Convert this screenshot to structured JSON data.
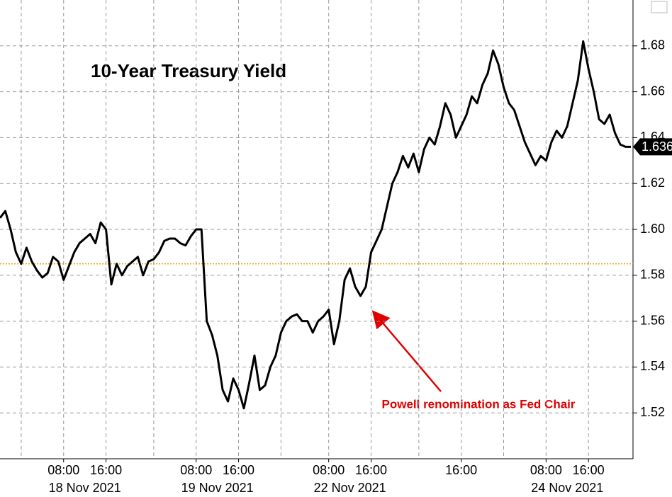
{
  "chart_data": {
    "type": "line",
    "title": "10-Year Treasury Yield",
    "annotation": "Powell renomination as Fed Chair",
    "x": [
      0,
      1,
      2,
      3,
      4,
      5,
      6,
      7,
      8,
      9,
      10,
      11,
      12,
      13,
      14,
      15,
      16,
      17,
      18,
      19,
      20,
      21,
      22,
      23,
      24,
      25,
      26,
      27,
      28,
      29,
      30,
      31,
      32,
      33,
      34,
      35,
      36,
      37,
      38,
      39,
      40,
      41,
      42,
      43,
      44,
      45,
      46,
      47,
      48,
      49,
      50,
      51,
      52,
      53,
      54,
      55,
      56,
      57,
      58,
      59,
      60,
      61,
      62,
      63,
      64,
      65,
      66,
      67,
      68,
      69,
      70,
      71,
      72,
      73,
      74,
      75,
      76,
      77,
      78,
      79,
      80,
      81,
      82,
      83,
      84,
      85,
      86,
      87,
      88,
      89,
      90,
      91,
      92,
      93,
      94,
      95,
      96,
      97,
      98,
      99,
      100,
      101,
      102,
      103,
      104,
      105,
      106,
      107,
      108,
      109,
      110,
      111,
      112,
      113,
      114,
      115,
      116,
      117,
      118,
      119
    ],
    "series": [
      {
        "color": "#000000",
        "values": [
          1.605,
          1.608,
          1.6,
          1.59,
          1.585,
          1.592,
          1.586,
          1.582,
          1.579,
          1.581,
          1.588,
          1.586,
          1.578,
          1.584,
          1.59,
          1.594,
          1.596,
          1.598,
          1.594,
          1.603,
          1.6,
          1.576,
          1.585,
          1.58,
          1.584,
          1.586,
          1.588,
          1.58,
          1.586,
          1.587,
          1.59,
          1.595,
          1.596,
          1.596,
          1.594,
          1.593,
          1.597,
          1.6,
          1.6,
          1.56,
          1.554,
          1.545,
          1.53,
          1.525,
          1.535,
          1.53,
          1.522,
          1.533,
          1.545,
          1.53,
          1.532,
          1.54,
          1.545,
          1.555,
          1.56,
          1.562,
          1.563,
          1.56,
          1.56,
          1.555,
          1.56,
          1.562,
          1.565,
          1.55,
          1.56,
          1.578,
          1.583,
          1.575,
          1.571,
          1.575,
          1.59,
          1.595,
          1.6,
          1.61,
          1.62,
          1.625,
          1.632,
          1.627,
          1.633,
          1.625,
          1.635,
          1.64,
          1.637,
          1.645,
          1.655,
          1.65,
          1.64,
          1.645,
          1.65,
          1.658,
          1.655,
          1.663,
          1.668,
          1.678,
          1.672,
          1.662,
          1.655,
          1.652,
          1.645,
          1.638,
          1.633,
          1.628,
          1.632,
          1.63,
          1.638,
          1.643,
          1.64,
          1.645,
          1.655,
          1.665,
          1.682,
          1.67,
          1.66,
          1.648,
          1.646,
          1.65,
          1.642,
          1.637,
          1.636,
          1.636
        ]
      }
    ],
    "last_label": {
      "value": 1.636,
      "label": "1.636"
    },
    "hline": {
      "value": 1.585,
      "color": "#e0a000"
    },
    "xlim": [
      0,
      119
    ],
    "ylim": [
      1.5,
      1.7
    ],
    "yticks": [
      {
        "value": 1.52,
        "label": "1.52"
      },
      {
        "value": 1.54,
        "label": "1.54"
      },
      {
        "value": 1.56,
        "label": "1.56"
      },
      {
        "value": 1.58,
        "label": "1.58"
      },
      {
        "value": 1.6,
        "label": "1.60"
      },
      {
        "value": 1.62,
        "label": "1.62"
      },
      {
        "value": 1.64,
        "label": "1.64"
      },
      {
        "value": 1.66,
        "label": "1.66"
      },
      {
        "value": 1.68,
        "label": "1.68"
      }
    ],
    "xgrid": [
      4,
      12,
      20,
      29,
      37,
      45,
      53,
      62,
      70,
      79,
      87,
      95,
      103,
      111
    ],
    "xticks": [
      {
        "value": 12,
        "label": "08:00"
      },
      {
        "value": 20,
        "label": "16:00"
      },
      {
        "value": 37,
        "label": "08:00"
      },
      {
        "value": 45,
        "label": "16:00"
      },
      {
        "value": 62,
        "label": "08:00"
      },
      {
        "value": 70,
        "label": "16:00"
      },
      {
        "value": 87,
        "label": "16:00"
      },
      {
        "value": 103,
        "label": "08:00"
      },
      {
        "value": 111,
        "label": "16:00"
      }
    ],
    "xdate_labels": [
      {
        "value": 16,
        "label": "18 Nov 2021"
      },
      {
        "value": 41,
        "label": "19 Nov 2021"
      },
      {
        "value": 66,
        "label": "22 Nov 2021"
      },
      {
        "value": 107,
        "label": "24 Nov 2021"
      }
    ],
    "grid": true
  }
}
